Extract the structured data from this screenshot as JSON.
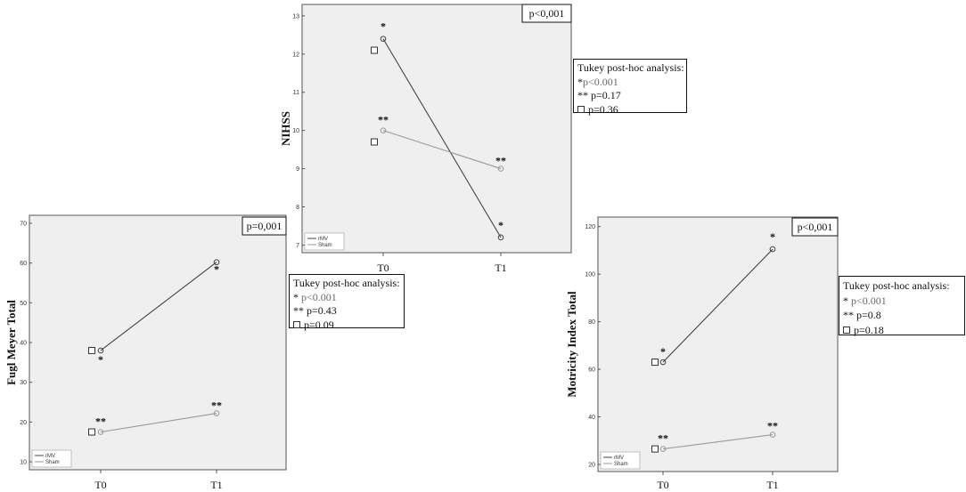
{
  "chart_data": [
    {
      "type": "line",
      "ylabel": "NIHSS",
      "categories": [
        "T0",
        "T1"
      ],
      "ylim": [
        6.8,
        13.3
      ],
      "yticks": [
        7,
        8,
        9,
        10,
        11,
        12,
        13
      ],
      "pvalue": "p<0,001",
      "legend": [
        "rMV",
        "Sham"
      ],
      "legend_position": "bottom-left",
      "grid": false,
      "series": [
        {
          "name": "rMV",
          "color": "#444444",
          "values": [
            12.4,
            7.2
          ],
          "stars": [
            "*",
            "*"
          ]
        },
        {
          "name": "Sham",
          "color": "#9a9a9a",
          "values": [
            10.0,
            9.0
          ],
          "stars": [
            "**",
            "**"
          ]
        }
      ],
      "baseline_squares": [
        12.1,
        9.7
      ],
      "tukey": {
        "title": "Tukey post-hoc analysis:",
        "lines": [
          {
            "symbol": "*",
            "text": "p<0.001"
          },
          {
            "symbol": "**",
            "text": "p=0.17"
          },
          {
            "symbol": "square",
            "text": "p=0.36"
          }
        ]
      }
    },
    {
      "type": "line",
      "ylabel": "Fugl  Meyer Total",
      "categories": [
        "T0",
        "T1"
      ],
      "ylim": [
        8,
        72
      ],
      "yticks": [
        10,
        20,
        30,
        40,
        50,
        60,
        70
      ],
      "pvalue": "p=0,001",
      "legend": [
        "rMV",
        "Sham"
      ],
      "legend_position": "bottom-left",
      "grid": false,
      "series": [
        {
          "name": "rMV",
          "color": "#444444",
          "values": [
            38,
            60.2
          ],
          "stars": [
            "*",
            "*"
          ]
        },
        {
          "name": "Sham",
          "color": "#9a9a9a",
          "values": [
            17.5,
            22.2
          ],
          "stars": [
            "**",
            "**"
          ]
        }
      ],
      "baseline_squares": [
        38,
        17.5
      ],
      "tukey": {
        "title": "Tukey post-hoc  analysis:",
        "lines": [
          {
            "symbol": "*",
            "text": "p<0.001"
          },
          {
            "symbol": "**",
            "text": "p=0.43"
          },
          {
            "symbol": "square",
            "text": "p=0.09"
          }
        ]
      }
    },
    {
      "type": "line",
      "ylabel": "Motricity Index Total",
      "categories": [
        "T0",
        "T1"
      ],
      "ylim": [
        17,
        124
      ],
      "yticks": [
        20,
        40,
        60,
        80,
        100,
        120
      ],
      "pvalue": "p<0,001",
      "legend": [
        "rMV",
        "Sham"
      ],
      "legend_position": "bottom-left",
      "grid": false,
      "series": [
        {
          "name": "rMV",
          "color": "#444444",
          "values": [
            63,
            110.5
          ],
          "stars": [
            "*",
            "*"
          ]
        },
        {
          "name": "Sham",
          "color": "#9a9a9a",
          "values": [
            26.5,
            32.5
          ],
          "stars": [
            "**",
            "**"
          ]
        }
      ],
      "baseline_squares": [
        63,
        26.5
      ],
      "tukey": {
        "title": "Tukey post-hoc  analysis:",
        "lines": [
          {
            "symbol": "*",
            "text": "p<0.001"
          },
          {
            "symbol": "**",
            "text": "p=0.8"
          },
          {
            "symbol": "square",
            "text": "p=0.18"
          }
        ]
      }
    }
  ]
}
